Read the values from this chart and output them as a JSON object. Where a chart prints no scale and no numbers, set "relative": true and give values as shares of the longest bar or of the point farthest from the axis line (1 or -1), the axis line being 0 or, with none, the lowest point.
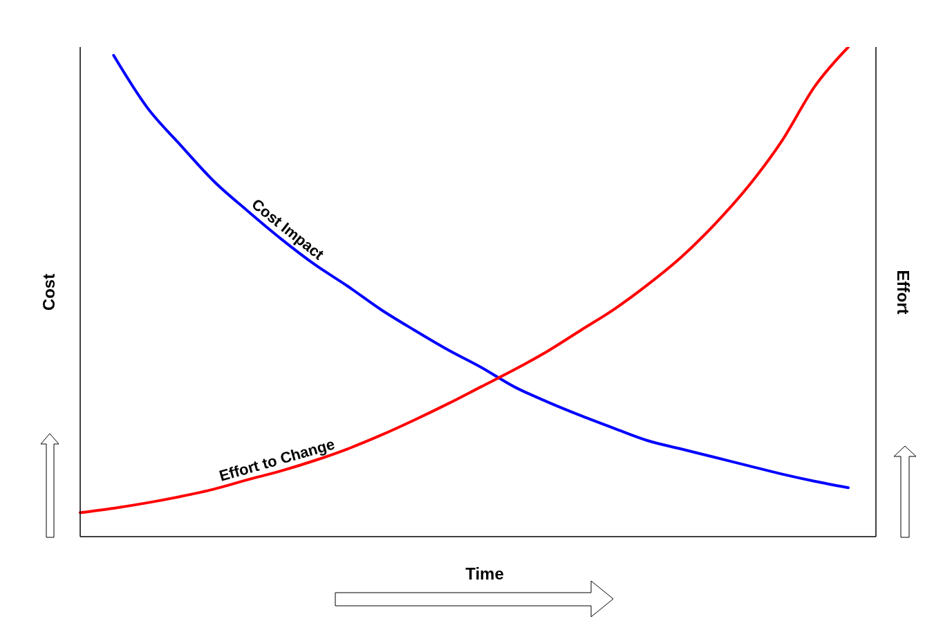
{
  "chart_data": {
    "type": "line",
    "xlabel": "Time",
    "ylabel": "Cost",
    "y2label": "Effort",
    "relative": true,
    "legend": false,
    "grid": false,
    "marker": "none",
    "line_style": "solid",
    "categories": [
      null,
      null,
      null,
      null,
      null,
      null,
      null,
      null,
      null,
      null,
      null,
      null,
      null,
      null,
      null,
      null,
      null,
      null,
      null,
      null,
      null,
      null,
      null,
      null
    ],
    "series": [
      {
        "name": "Cost Impact",
        "color": "#0000ff",
        "values": [
          null,
          0.983,
          0.877,
          0.8,
          0.726,
          0.666,
          0.609,
          0.557,
          0.512,
          0.464,
          0.422,
          0.382,
          0.346,
          0.306,
          0.275,
          0.247,
          0.221,
          0.196,
          0.179,
          0.162,
          0.145,
          0.128,
          0.113,
          0.1
        ]
      },
      {
        "name": "Effort to Change",
        "color": "#ff0000",
        "values": [
          0.049,
          0.058,
          0.069,
          0.082,
          0.097,
          0.116,
          0.134,
          0.155,
          0.179,
          0.207,
          0.238,
          0.271,
          0.306,
          0.341,
          0.379,
          0.422,
          0.465,
          0.515,
          0.571,
          0.638,
          0.715,
          0.807,
          0.92,
          1
        ]
      }
    ]
  }
}
